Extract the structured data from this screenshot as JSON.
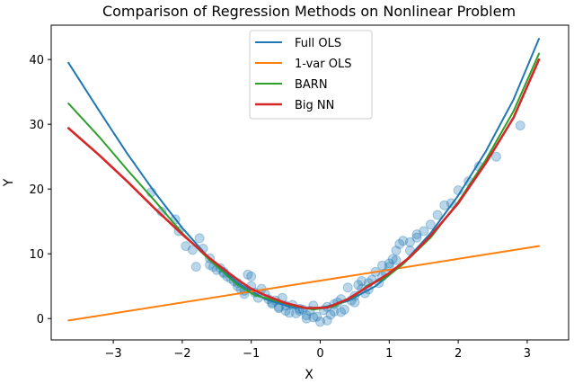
{
  "chart_data": {
    "type": "line",
    "title": "Comparison of Regression Methods on Nonlinear Problem",
    "xlabel": "X",
    "ylabel": "Y",
    "xlim": [
      -3.9,
      3.6
    ],
    "ylim": [
      -3.3,
      45.3
    ],
    "xticks": [
      -3,
      -2,
      -1,
      0,
      1,
      2,
      3
    ],
    "yticks": [
      0,
      10,
      20,
      30,
      40
    ],
    "grid": false,
    "legend_position": "top-center",
    "series": [
      {
        "name": "Full OLS",
        "color": "#1f77b4",
        "x": [
          -3.65,
          -3.2,
          -2.8,
          -2.4,
          -2.0,
          -1.6,
          -1.2,
          -0.8,
          -0.4,
          0.0,
          0.4,
          0.8,
          1.2,
          1.6,
          2.0,
          2.4,
          2.8,
          3.17
        ],
        "y": [
          39.5,
          32.0,
          25.5,
          19.5,
          14.0,
          9.2,
          5.5,
          3.0,
          1.7,
          1.6,
          2.7,
          5.0,
          8.5,
          13.2,
          19.0,
          25.8,
          33.8,
          43.2
        ]
      },
      {
        "name": "1-var OLS",
        "color": "#ff7f0e",
        "x": [
          -3.65,
          3.17
        ],
        "y": [
          -0.3,
          11.2
        ]
      },
      {
        "name": "BARN",
        "color": "#2ca02c",
        "x": [
          -3.65,
          -3.2,
          -2.8,
          -2.4,
          -2.0,
          -1.6,
          -1.2,
          -0.95,
          -0.7,
          -0.4,
          -0.1,
          0.2,
          0.5,
          0.7,
          0.95,
          1.2,
          1.6,
          2.0,
          2.4,
          2.8,
          3.17
        ],
        "y": [
          33.2,
          28.0,
          23.0,
          18.2,
          13.2,
          9.0,
          5.2,
          3.6,
          2.9,
          2.0,
          1.4,
          1.9,
          3.5,
          5.2,
          6.3,
          8.4,
          12.5,
          18.0,
          24.5,
          32.0,
          40.9
        ]
      },
      {
        "name": "Big NN",
        "color": "#d62728",
        "x": [
          -3.65,
          -3.2,
          -2.8,
          -2.4,
          -2.0,
          -1.6,
          -1.2,
          -1.0,
          -0.8,
          -0.5,
          -0.2,
          0.1,
          0.4,
          0.7,
          1.0,
          1.3,
          1.6,
          2.0,
          2.4,
          2.8,
          3.17
        ],
        "y": [
          29.4,
          25.2,
          21.2,
          17.0,
          13.0,
          9.3,
          6.0,
          4.6,
          3.6,
          2.4,
          1.6,
          1.7,
          3.0,
          5.0,
          7.0,
          9.5,
          12.8,
          17.8,
          24.0,
          31.0,
          40.0
        ]
      }
    ],
    "scatter": {
      "name": "data",
      "color": "#1f77b4",
      "x": [
        -2.45,
        -2.3,
        -2.1,
        -2.05,
        -1.95,
        -1.85,
        -1.75,
        -1.7,
        -1.6,
        -1.55,
        -1.5,
        -1.45,
        -1.4,
        -1.35,
        -1.3,
        -1.25,
        -1.2,
        -1.15,
        -1.1,
        -1.05,
        -1.0,
        -0.95,
        -0.9,
        -0.85,
        -0.8,
        -0.75,
        -0.7,
        -0.65,
        -0.6,
        -0.55,
        -0.5,
        -0.45,
        -0.4,
        -0.35,
        -0.3,
        -0.25,
        -0.2,
        -0.15,
        -0.1,
        -0.05,
        0.0,
        0.05,
        0.1,
        0.15,
        0.2,
        0.25,
        0.3,
        0.35,
        0.4,
        0.45,
        0.5,
        0.55,
        0.6,
        0.65,
        0.7,
        0.75,
        0.8,
        0.85,
        0.9,
        0.95,
        1.0,
        1.05,
        1.1,
        1.15,
        1.2,
        1.3,
        1.4,
        1.5,
        1.6,
        1.7,
        1.8,
        1.9,
        2.0,
        2.15,
        2.3,
        2.55,
        2.9,
        -1.6,
        -1.4,
        -1.2,
        -1.0,
        -0.7,
        -0.5,
        -0.3,
        -0.1,
        0.1,
        0.3,
        0.5,
        0.7,
        0.9,
        1.1,
        1.3,
        -1.8,
        -1.1,
        -0.6,
        -0.2,
        0.2,
        0.6,
        1.0,
        1.4
      ],
      "y": [
        19.5,
        16.5,
        15.3,
        13.5,
        11.2,
        10.6,
        12.4,
        10.8,
        9.3,
        8.0,
        7.5,
        7.8,
        7.2,
        6.5,
        6.2,
        5.8,
        5.0,
        4.5,
        4.3,
        6.8,
        6.5,
        4.0,
        3.2,
        4.6,
        3.8,
        3.0,
        2.3,
        2.8,
        1.6,
        3.2,
        1.2,
        0.9,
        2.1,
        0.8,
        1.5,
        1.4,
        0.5,
        1.2,
        2.0,
        0.3,
        -0.5,
        1.3,
        1.8,
        0.6,
        1.1,
        2.5,
        3.0,
        1.4,
        4.8,
        2.8,
        3.5,
        5.2,
        4.6,
        3.9,
        5.5,
        6.0,
        7.2,
        5.5,
        8.2,
        7.0,
        8.5,
        9.2,
        10.5,
        11.5,
        12.0,
        11.8,
        13.0,
        13.5,
        14.5,
        16.0,
        17.5,
        17.8,
        19.8,
        21.2,
        23.5,
        25.0,
        29.8,
        8.3,
        7.0,
        5.5,
        5.0,
        2.5,
        2.0,
        1.2,
        0.2,
        -0.3,
        1.0,
        2.5,
        4.5,
        6.5,
        9.0,
        10.5,
        8.0,
        3.8,
        1.8,
        0.0,
        2.2,
        5.8,
        8.0,
        12.5
      ]
    }
  }
}
